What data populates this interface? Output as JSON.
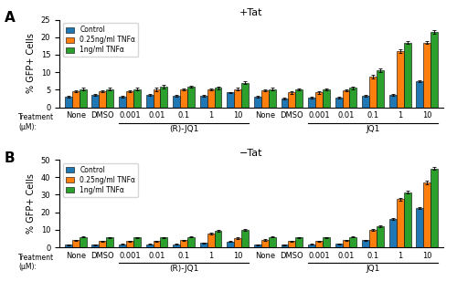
{
  "chart_data": [
    {
      "type": "bar",
      "panel_label": "A",
      "title": "+Tat",
      "y_label": "% GFP+ Cells",
      "x_label": "Treatment\n(μM):",
      "categories": [
        "None",
        "DMSO",
        "0.001",
        "0.01",
        "0.1",
        "1",
        "10",
        "None",
        "DMSO",
        "0.001",
        "0.01",
        "0.1",
        "1",
        "10"
      ],
      "category_groups": [
        {
          "label": "(R)-JQ1",
          "first": 2,
          "last": 6
        },
        {
          "label": "JQ1",
          "first": 9,
          "last": 13
        }
      ],
      "series": [
        {
          "name": "Control",
          "values": [
            3.0,
            3.5,
            3.0,
            3.5,
            3.2,
            3.2,
            4.2,
            3.0,
            2.5,
            2.8,
            2.8,
            3.2,
            3.5,
            7.5
          ],
          "errors": [
            0.2,
            0.2,
            0.2,
            0.2,
            0.2,
            0.2,
            0.2,
            0.2,
            0.2,
            0.2,
            0.2,
            0.2,
            0.3,
            0.3
          ]
        },
        {
          "name": "0.25ng/ml TNFα",
          "values": [
            4.5,
            4.5,
            4.5,
            5.0,
            5.0,
            5.0,
            5.2,
            4.8,
            4.2,
            4.2,
            4.8,
            8.8,
            16.0,
            18.5
          ],
          "errors": [
            0.3,
            0.3,
            0.3,
            0.5,
            0.3,
            0.3,
            0.3,
            0.3,
            0.3,
            0.3,
            0.3,
            0.5,
            0.5,
            0.5
          ]
        },
        {
          "name": "1ng/ml TNFα",
          "values": [
            5.2,
            5.2,
            5.2,
            5.8,
            5.8,
            5.5,
            7.0,
            5.2,
            5.0,
            5.0,
            5.5,
            10.5,
            18.5,
            21.5
          ],
          "errors": [
            0.3,
            0.3,
            0.3,
            0.5,
            0.3,
            0.3,
            0.3,
            0.3,
            0.3,
            0.3,
            0.3,
            0.5,
            0.5,
            0.5
          ]
        }
      ],
      "ylim": [
        0,
        25
      ],
      "yticks": [
        0,
        5,
        10,
        15,
        20,
        25
      ],
      "grid": false,
      "legend": "upper left"
    },
    {
      "type": "bar",
      "panel_label": "B",
      "title": "−Tat",
      "y_label": "% GFP+ Cells",
      "x_label": "Treatment\n(μM):",
      "categories": [
        "None",
        "DMSO",
        "0.001",
        "0.01",
        "0.1",
        "1",
        "10",
        "None",
        "DMSO",
        "0.001",
        "0.01",
        "0.1",
        "1",
        "10"
      ],
      "category_groups": [
        {
          "label": "(R)-JQ1",
          "first": 2,
          "last": 6
        },
        {
          "label": "JQ1",
          "first": 9,
          "last": 13
        }
      ],
      "series": [
        {
          "name": "Control",
          "values": [
            1.5,
            1.5,
            1.8,
            1.8,
            1.8,
            2.5,
            3.2,
            1.5,
            1.5,
            1.8,
            2.0,
            4.0,
            16.0,
            22.5
          ],
          "errors": [
            0.2,
            0.2,
            0.2,
            0.2,
            0.2,
            0.3,
            0.3,
            0.2,
            0.2,
            0.2,
            0.2,
            0.3,
            0.5,
            0.5
          ]
        },
        {
          "name": "0.25ng/ml TNFα",
          "values": [
            4.0,
            3.5,
            3.5,
            3.5,
            4.0,
            8.0,
            5.0,
            4.2,
            3.5,
            3.5,
            4.0,
            10.0,
            27.5,
            37.0
          ],
          "errors": [
            0.3,
            0.3,
            0.3,
            0.3,
            0.3,
            0.5,
            0.5,
            0.3,
            0.3,
            0.3,
            0.3,
            0.5,
            0.8,
            0.8
          ]
        },
        {
          "name": "1ng/ml TNFα",
          "values": [
            6.0,
            5.5,
            5.5,
            5.5,
            6.0,
            9.5,
            10.0,
            6.0,
            5.5,
            5.5,
            6.0,
            12.0,
            31.5,
            45.0
          ],
          "errors": [
            0.3,
            0.3,
            0.3,
            0.3,
            0.3,
            0.5,
            0.5,
            0.3,
            0.3,
            0.3,
            0.3,
            0.5,
            0.8,
            0.8
          ]
        }
      ],
      "ylim": [
        0,
        50
      ],
      "yticks": [
        0,
        10,
        20,
        30,
        40,
        50
      ],
      "grid": false,
      "legend": "upper left"
    }
  ]
}
